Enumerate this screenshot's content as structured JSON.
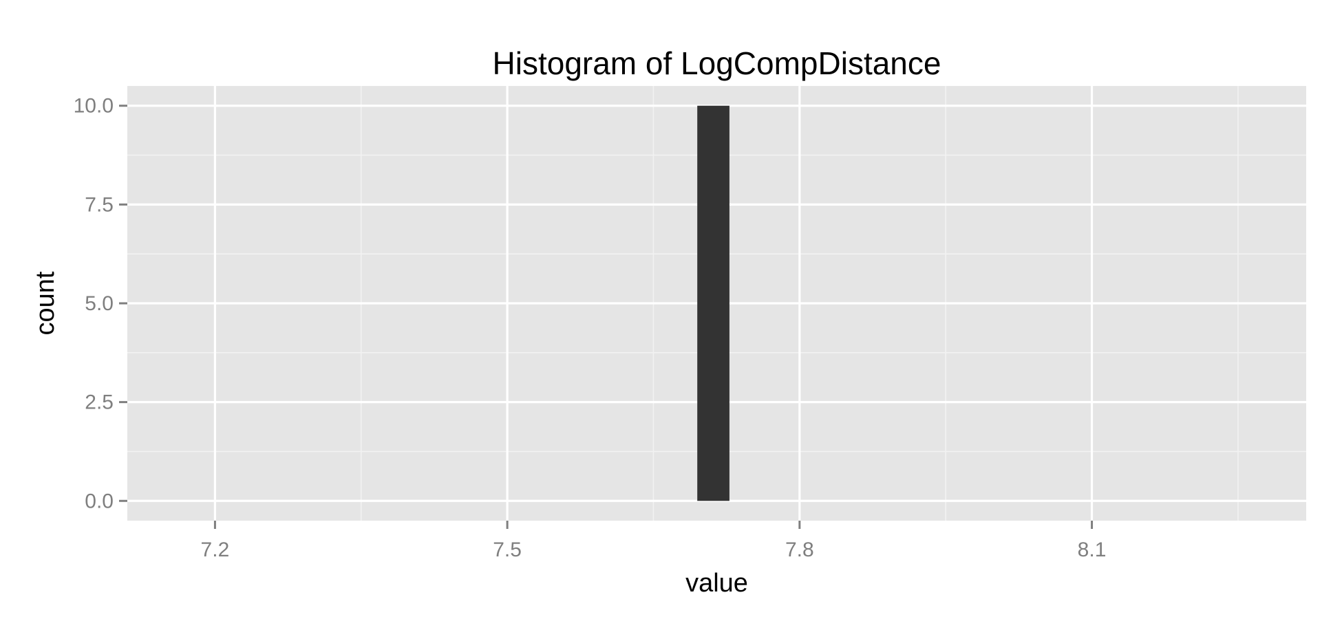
{
  "chart_data": {
    "type": "bar",
    "title": "Histogram of LogCompDistance",
    "xlabel": "value",
    "ylabel": "count",
    "xlim": [
      7.11,
      8.32
    ],
    "ylim": [
      -0.5,
      10.5
    ],
    "x_ticks": [
      7.2,
      7.5,
      7.8,
      8.1
    ],
    "x_tick_labels": [
      "7.2",
      "7.5",
      "7.8",
      "8.1"
    ],
    "y_ticks": [
      0,
      2.5,
      5,
      7.5,
      10
    ],
    "y_tick_labels": [
      "0.0",
      "2.5",
      "5.0",
      "7.5",
      "10.0"
    ],
    "bins": [
      {
        "x_start": 7.695,
        "x_end": 7.728,
        "count": 10
      }
    ],
    "grid": true,
    "legend": "none",
    "colors": {
      "panel_background": "#e5e5e5",
      "grid_major": "#ffffff",
      "grid_minor": "#f2f2f2",
      "bar_fill": "#333333",
      "tick_mark": "#7f7f7f"
    }
  }
}
